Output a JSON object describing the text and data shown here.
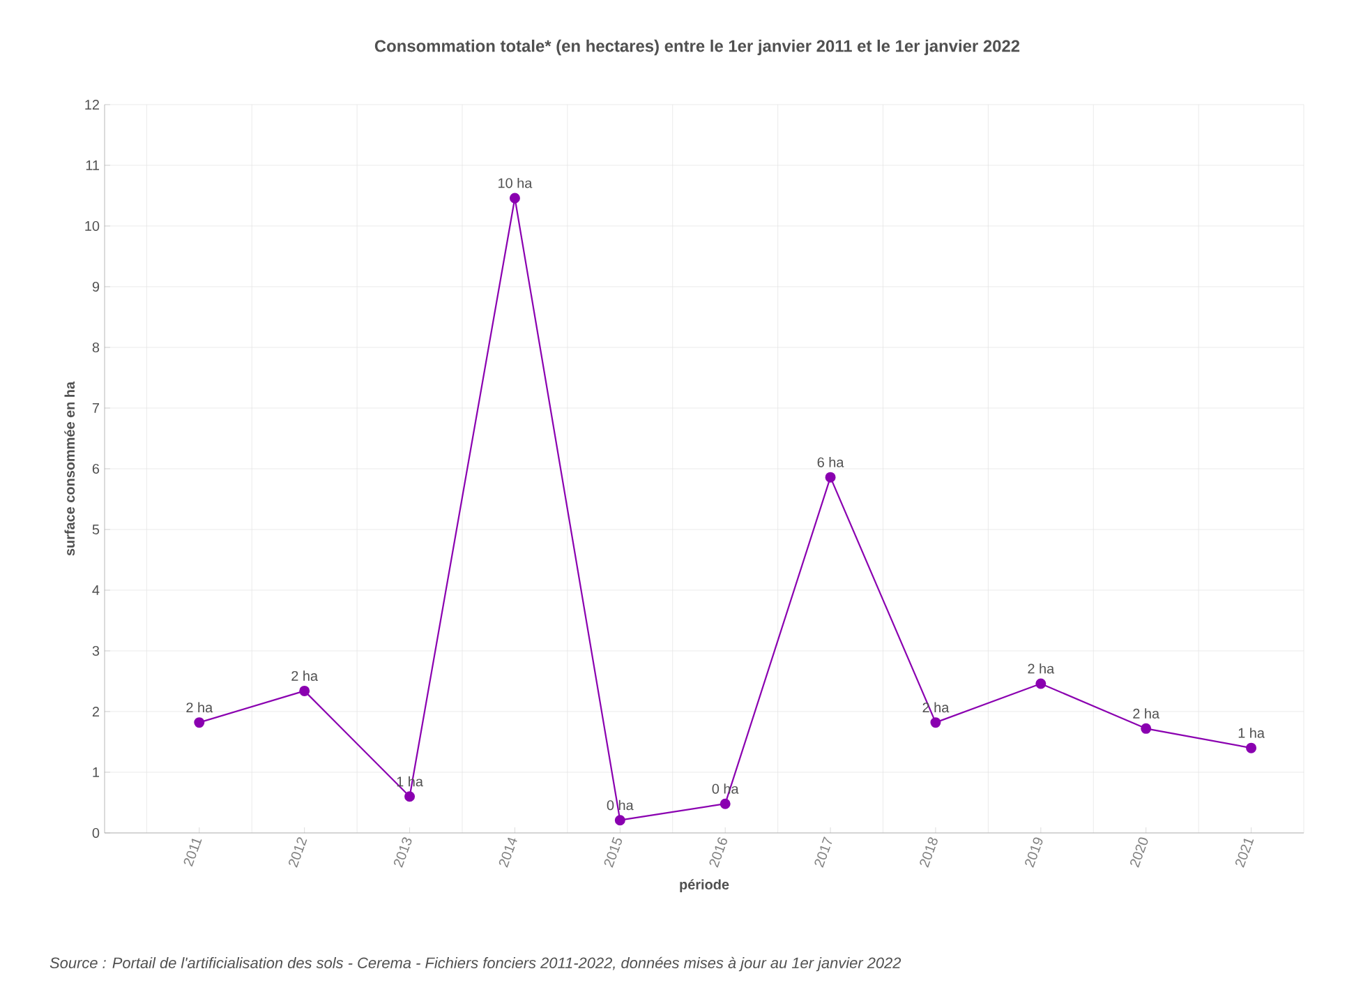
{
  "chart_data": {
    "type": "line",
    "title": "Consommation totale* (en hectares) entre le 1er janvier 2011 et le 1er janvier 2022",
    "xlabel": "période",
    "ylabel": "surface consommée en ha",
    "annotations": [
      "Source : Portail de l'artificialisation des sols - Cerema - Fichiers fonciers 2011-2022, données mises à jour au 1er janvier 2022"
    ],
    "categories": [
      "2011",
      "2012",
      "2013",
      "2014",
      "2015",
      "2016",
      "2017",
      "2018",
      "2019",
      "2020",
      "2021"
    ],
    "series": [
      {
        "color": "#8a00b0",
        "values": [
          1.82,
          2.34,
          0.6,
          10.46,
          0.21,
          0.48,
          5.86,
          1.82,
          2.46,
          1.72,
          1.4
        ],
        "value_labels": [
          "2 ha",
          "2 ha",
          "1 ha",
          "10 ha",
          "0 ha",
          "0 ha",
          "6 ha",
          "2 ha",
          "2 ha",
          "2 ha",
          "1 ha"
        ]
      }
    ],
    "ylim": [
      0,
      12
    ],
    "yticks": [
      0,
      1,
      2,
      3,
      4,
      5,
      6,
      7,
      8,
      9,
      10,
      11,
      12
    ],
    "grid": true,
    "marker": "circle",
    "line_style": "solid"
  }
}
